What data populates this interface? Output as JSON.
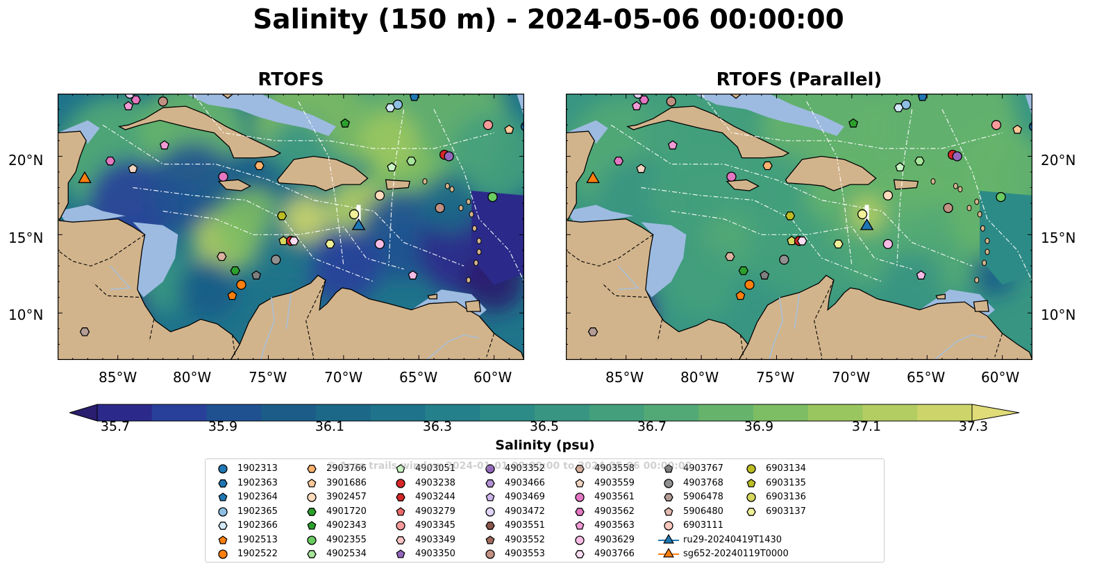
{
  "figure": {
    "title": "Salinity (150 m) - 2024-05-06 00:00:00",
    "panels": [
      {
        "title": "RTOFS"
      },
      {
        "title": "RTOFS (Parallel)"
      }
    ]
  },
  "axes": {
    "x_ticks": [
      "85°W",
      "80°W",
      "75°W",
      "70°W",
      "65°W",
      "60°W"
    ],
    "y_ticks": [
      "20°N",
      "15°N",
      "10°N"
    ],
    "lon_range": [
      -89,
      -58
    ],
    "lat_range": [
      7,
      24
    ]
  },
  "colorbar": {
    "label": "Salinity (psu)",
    "tick_labels": [
      "35.7",
      "35.9",
      "36.1",
      "36.3",
      "36.5",
      "36.7",
      "36.9",
      "37.1",
      "37.3"
    ],
    "colors": [
      "#2a1e6e",
      "#2b2a8a",
      "#28409a",
      "#1f5190",
      "#1b5d88",
      "#1c6888",
      "#1f738a",
      "#24808a",
      "#2c8b86",
      "#389582",
      "#44a07c",
      "#52a976",
      "#66b46c",
      "#7dbd63",
      "#9ac660",
      "#b4cd62",
      "#cdd56a",
      "#e0dc78"
    ],
    "extend": "both"
  },
  "colors": {
    "land": "#d2b48c",
    "shallow_water": "#9dbbe0",
    "glider_ru29": "#1f77b4",
    "glider_sg652": "#ff7f0e"
  },
  "legend": {
    "watermark": "© Argo trails window 2024-01-01 00:00:00 to 2024-05-06 00:00:00",
    "items": [
      {
        "label": "1902313",
        "marker": "circle",
        "color": "#1f77b4"
      },
      {
        "label": "1902363",
        "marker": "hexagon",
        "color": "#1f77b4"
      },
      {
        "label": "1902364",
        "marker": "pentagon",
        "color": "#1f77b4"
      },
      {
        "label": "1902365",
        "marker": "circle",
        "color": "#8ebfe2"
      },
      {
        "label": "1902366",
        "marker": "hexagon",
        "color": "#d3e9f8"
      },
      {
        "label": "1902513",
        "marker": "pentagon",
        "color": "#ff7f0e"
      },
      {
        "label": "1902522",
        "marker": "circle",
        "color": "#ff7f0e"
      },
      {
        "label": "2903766",
        "marker": "hexagon",
        "color": "#ffb26e"
      },
      {
        "label": "3901686",
        "marker": "pentagon",
        "color": "#ffc898"
      },
      {
        "label": "3902457",
        "marker": "circle",
        "color": "#ffdcbc"
      },
      {
        "label": "4901720",
        "marker": "hexagon",
        "color": "#2ca02c"
      },
      {
        "label": "4902343",
        "marker": "pentagon",
        "color": "#2ca02c"
      },
      {
        "label": "4902355",
        "marker": "circle",
        "color": "#6acb61"
      },
      {
        "label": "4902534",
        "marker": "hexagon",
        "color": "#a6e59a"
      },
      {
        "label": "4903051",
        "marker": "pentagon",
        "color": "#c9f5c2"
      },
      {
        "label": "4903238",
        "marker": "circle",
        "color": "#d62728"
      },
      {
        "label": "4903244",
        "marker": "hexagon",
        "color": "#d62728"
      },
      {
        "label": "4903279",
        "marker": "pentagon",
        "color": "#ea6a6a"
      },
      {
        "label": "4903345",
        "marker": "circle",
        "color": "#f79a9a"
      },
      {
        "label": "4903349",
        "marker": "hexagon",
        "color": "#fbc3c3"
      },
      {
        "label": "4903350",
        "marker": "pentagon",
        "color": "#9467bd"
      },
      {
        "label": "4903352",
        "marker": "circle",
        "color": "#9467bd"
      },
      {
        "label": "4903466",
        "marker": "hexagon",
        "color": "#b392d6"
      },
      {
        "label": "4903469",
        "marker": "pentagon",
        "color": "#cdb5ec"
      },
      {
        "label": "4903472",
        "marker": "circle",
        "color": "#e2d4f6"
      },
      {
        "label": "4903551",
        "marker": "hexagon",
        "color": "#8c564b"
      },
      {
        "label": "4903552",
        "marker": "pentagon",
        "color": "#a06a5d"
      },
      {
        "label": "4903553",
        "marker": "circle",
        "color": "#c09182"
      },
      {
        "label": "4903558",
        "marker": "hexagon",
        "color": "#dbb29f"
      },
      {
        "label": "4903559",
        "marker": "pentagon",
        "color": "#f0d3c1"
      },
      {
        "label": "4903561",
        "marker": "circle",
        "color": "#e377c2"
      },
      {
        "label": "4903562",
        "marker": "hexagon",
        "color": "#e377c2"
      },
      {
        "label": "4903563",
        "marker": "pentagon",
        "color": "#f09bd6"
      },
      {
        "label": "4903629",
        "marker": "circle",
        "color": "#f7bce6"
      },
      {
        "label": "4903766",
        "marker": "hexagon",
        "color": "#fbdcf2"
      },
      {
        "label": "4903767",
        "marker": "pentagon",
        "color": "#7f7f7f"
      },
      {
        "label": "4903768",
        "marker": "circle",
        "color": "#909090"
      },
      {
        "label": "5906478",
        "marker": "hexagon",
        "color": "#b49d96"
      },
      {
        "label": "5906480",
        "marker": "pentagon",
        "color": "#e3b9b0"
      },
      {
        "label": "6903111",
        "marker": "circle",
        "color": "#f9c7bd"
      },
      {
        "label": "ru29-20240419T1430",
        "marker": "triangle-line",
        "color": "#1f77b4"
      },
      {
        "label": "sg652-20240119T0000",
        "marker": "triangle-line",
        "color": "#ff7f0e"
      },
      {
        "label": "6903134",
        "marker": "circle",
        "color": "#bcbd22"
      },
      {
        "label": "6903135",
        "marker": "pentagon",
        "color": "#bcbd22"
      },
      {
        "label": "6903136",
        "marker": "circle",
        "color": "#d7d85e"
      },
      {
        "label": "6903137",
        "marker": "hexagon",
        "color": "#f0f098"
      }
    ]
  },
  "floats": [
    {
      "lon": -84.2,
      "lat": 24.0,
      "marker": "circle",
      "color": "#e2d4f6"
    },
    {
      "lon": -83.8,
      "lat": 23.6,
      "marker": "hexagon",
      "color": "#e377c2"
    },
    {
      "lon": -84.3,
      "lat": 23.2,
      "marker": "pentagon",
      "color": "#f09bd6"
    },
    {
      "lon": -82.0,
      "lat": 23.5,
      "marker": "circle",
      "color": "#c09182"
    },
    {
      "lon": -65.3,
      "lat": 23.8,
      "marker": "pentagon",
      "color": "#1f77b4"
    },
    {
      "lon": -66.4,
      "lat": 23.3,
      "marker": "circle",
      "color": "#8ebfe2"
    },
    {
      "lon": -66.9,
      "lat": 23.1,
      "marker": "hexagon",
      "color": "#d3e9f8"
    },
    {
      "lon": -69.9,
      "lat": 22.1,
      "marker": "pentagon",
      "color": "#2ca02c"
    },
    {
      "lon": -60.4,
      "lat": 22.0,
      "marker": "circle",
      "color": "#f79a9a"
    },
    {
      "lon": -59.0,
      "lat": 21.7,
      "marker": "pentagon",
      "color": "#ffc898"
    },
    {
      "lon": -57.9,
      "lat": 21.9,
      "marker": "circle",
      "color": "#1f77b4"
    },
    {
      "lon": -81.9,
      "lat": 20.7,
      "marker": "pentagon",
      "color": "#f09bd6"
    },
    {
      "lon": -85.5,
      "lat": 19.7,
      "marker": "hexagon",
      "color": "#e377c2"
    },
    {
      "lon": -84.0,
      "lat": 19.2,
      "marker": "pentagon",
      "color": "#f0d3c1"
    },
    {
      "lon": -75.6,
      "lat": 19.4,
      "marker": "hexagon",
      "color": "#ffb26e"
    },
    {
      "lon": -78.0,
      "lat": 18.7,
      "marker": "circle",
      "color": "#e377c2"
    },
    {
      "lon": -66.8,
      "lat": 19.3,
      "marker": "pentagon",
      "color": "#c9f5c2"
    },
    {
      "lon": -65.5,
      "lat": 19.7,
      "marker": "hexagon",
      "color": "#a6e59a"
    },
    {
      "lon": -63.3,
      "lat": 20.1,
      "marker": "circle",
      "color": "#d62728"
    },
    {
      "lon": -63.0,
      "lat": 20.0,
      "marker": "circle",
      "color": "#9467bd"
    },
    {
      "lon": -87.2,
      "lat": 18.5,
      "marker": "triangle",
      "color": "#ff7f0e"
    },
    {
      "lon": -67.6,
      "lat": 17.5,
      "marker": "circle",
      "color": "#ffdcbc"
    },
    {
      "lon": -60.1,
      "lat": 17.4,
      "marker": "circle",
      "color": "#6acb61"
    },
    {
      "lon": -63.6,
      "lat": 16.7,
      "marker": "circle",
      "color": "#c09182"
    },
    {
      "lon": -74.1,
      "lat": 16.2,
      "marker": "hexagon",
      "color": "#bcbd22"
    },
    {
      "lon": -69.3,
      "lat": 16.3,
      "marker": "circle",
      "color": "#f0f098"
    },
    {
      "lon": -69.0,
      "lat": 15.5,
      "marker": "triangle",
      "color": "#1f77b4"
    },
    {
      "lon": -74.0,
      "lat": 14.6,
      "marker": "pentagon",
      "color": "#d7d85e"
    },
    {
      "lon": -73.5,
      "lat": 14.6,
      "marker": "circle",
      "color": "#d62728"
    },
    {
      "lon": -73.3,
      "lat": 14.6,
      "marker": "hexagon",
      "color": "#fbdcf2"
    },
    {
      "lon": -70.9,
      "lat": 14.4,
      "marker": "hexagon",
      "color": "#f0f098"
    },
    {
      "lon": -67.6,
      "lat": 14.4,
      "marker": "circle",
      "color": "#f7bce6"
    },
    {
      "lon": -78.1,
      "lat": 13.6,
      "marker": "hexagon",
      "color": "#dbb29f"
    },
    {
      "lon": -74.5,
      "lat": 13.4,
      "marker": "circle",
      "color": "#909090"
    },
    {
      "lon": -77.2,
      "lat": 12.7,
      "marker": "hexagon",
      "color": "#2ca02c"
    },
    {
      "lon": -75.8,
      "lat": 12.4,
      "marker": "pentagon",
      "color": "#7f7f7f"
    },
    {
      "lon": -65.4,
      "lat": 12.4,
      "marker": "pentagon",
      "color": "#f7bce6"
    },
    {
      "lon": -76.8,
      "lat": 11.8,
      "marker": "circle",
      "color": "#ff7f0e"
    },
    {
      "lon": -77.4,
      "lat": 11.1,
      "marker": "pentagon",
      "color": "#ff7f0e"
    },
    {
      "lon": -87.2,
      "lat": 8.8,
      "marker": "hexagon",
      "color": "#b49d96"
    }
  ]
}
